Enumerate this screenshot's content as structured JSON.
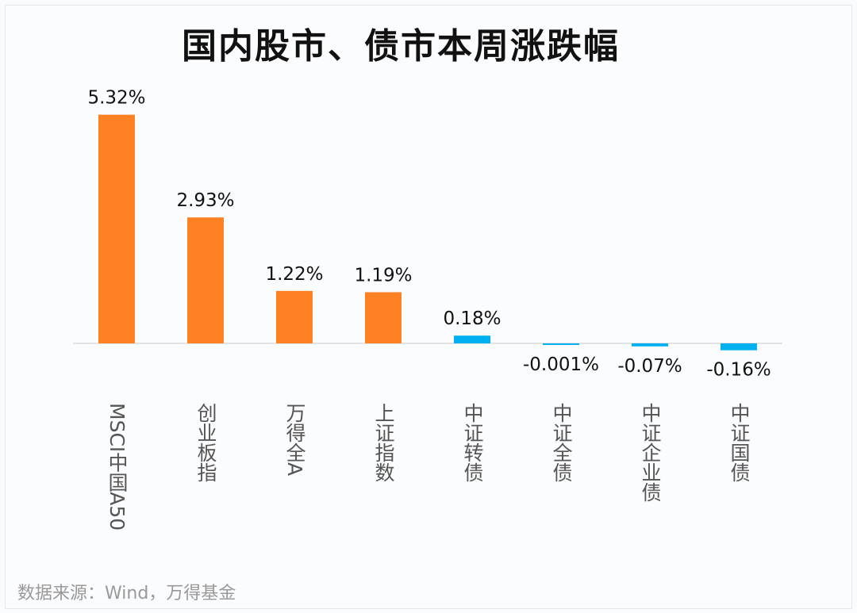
{
  "chart_data": {
    "type": "bar",
    "title": "国内股市、债市本周涨跌幅",
    "categories": [
      "MSCI中国A50",
      "创业板指",
      "万得全A",
      "上证指数",
      "中证转债",
      "中证全债",
      "中证企业债",
      "中证国债"
    ],
    "values": [
      5.32,
      2.93,
      1.22,
      1.19,
      0.18,
      -0.001,
      -0.07,
      -0.16
    ],
    "data_labels": [
      "5.32%",
      "2.93%",
      "1.22%",
      "1.19%",
      "0.18%",
      "-0.001%",
      "-0.07%",
      "-0.16%"
    ],
    "bar_colors": [
      "#ff8124",
      "#ff8124",
      "#ff8124",
      "#ff8124",
      "#00b0f0",
      "#00b0f0",
      "#00b0f0",
      "#00b0f0"
    ],
    "xlabel": "",
    "ylabel": "",
    "ylim": [
      -0.2,
      5.4
    ],
    "grid": false,
    "legend": "none"
  },
  "source": "数据来源：Wind，万得基金"
}
